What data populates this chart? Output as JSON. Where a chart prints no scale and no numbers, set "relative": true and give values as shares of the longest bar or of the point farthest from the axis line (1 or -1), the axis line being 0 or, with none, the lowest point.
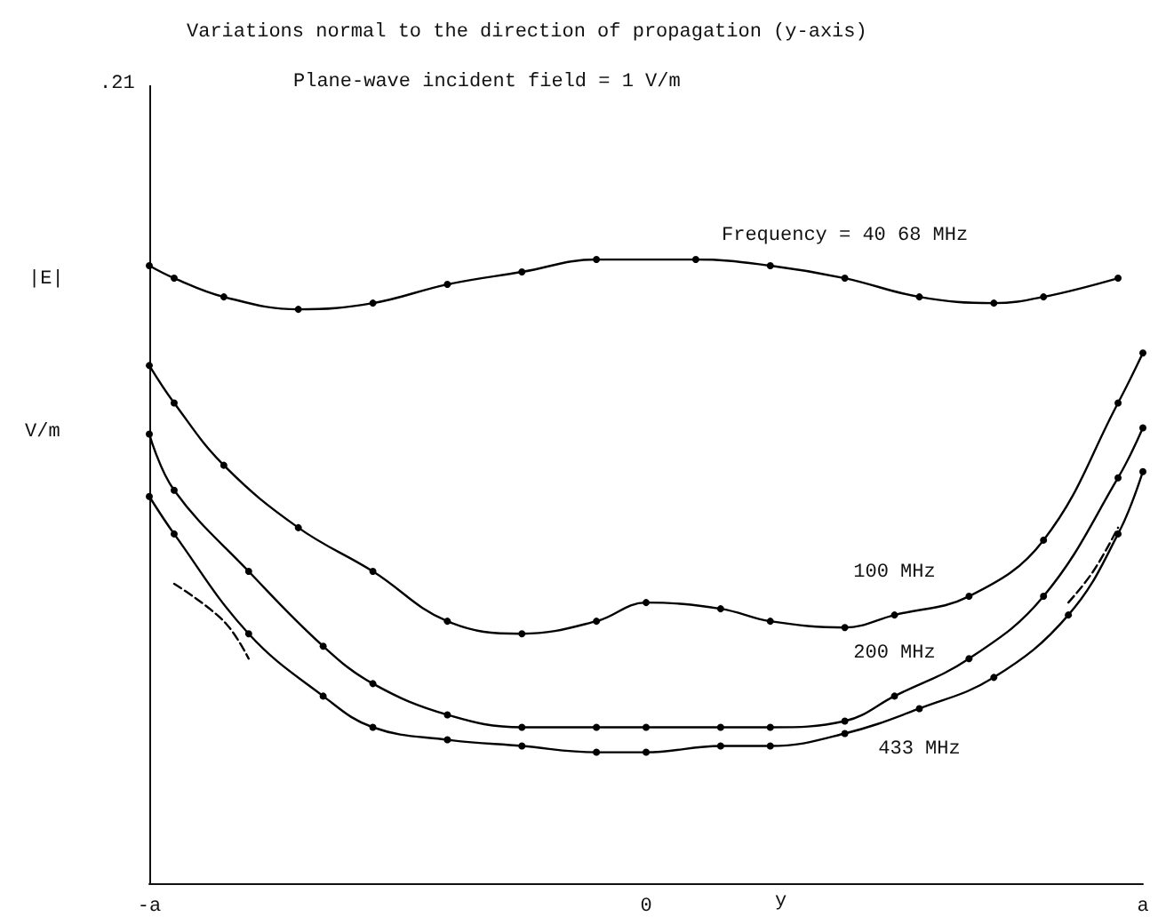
{
  "chart_data": {
    "type": "line",
    "title": "Variations normal to the direction of propagation (y-axis)",
    "subtitle": "Plane-wave incident field = 1 V/m",
    "xlabel": "y",
    "ylabel": "|E|",
    "annotations": [
      ".21",
      "V/m"
    ],
    "relative": true,
    "grid": false,
    "marker": "circle",
    "line_style": "solid",
    "categories": [
      "-a",
      null,
      null,
      null,
      null,
      null,
      null,
      null,
      null,
      null,
      null,
      null,
      null,
      null,
      null,
      null,
      null,
      null,
      null,
      null,
      "0",
      null,
      null,
      null,
      null,
      null,
      null,
      null,
      null,
      null,
      null,
      null,
      null,
      null,
      null,
      null,
      null,
      null,
      null,
      null,
      "a"
    ],
    "series": [
      {
        "name": "Frequency = 40 68 MHz",
        "color": "#000000",
        "values": [
          0.99,
          0.97,
          null,
          0.94,
          null,
          null,
          0.92,
          null,
          null,
          0.93,
          null,
          null,
          0.96,
          null,
          null,
          0.98,
          null,
          null,
          1.0,
          null,
          null,
          null,
          1.0,
          null,
          null,
          0.99,
          null,
          null,
          0.97,
          null,
          null,
          0.94,
          null,
          null,
          0.93,
          null,
          0.94,
          null,
          null,
          0.97,
          null
        ]
      },
      {
        "name": "100 MHz",
        "color": "#000000",
        "values": [
          0.83,
          0.77,
          null,
          0.67,
          null,
          null,
          0.57,
          null,
          null,
          0.5,
          null,
          null,
          0.42,
          null,
          null,
          0.4,
          null,
          null,
          0.42,
          null,
          0.45,
          null,
          null,
          0.44,
          null,
          0.42,
          null,
          null,
          0.41,
          null,
          0.43,
          null,
          null,
          0.46,
          null,
          null,
          0.55,
          null,
          null,
          0.77,
          0.85
        ]
      },
      {
        "name": "200 MHz",
        "color": "#000000",
        "values": [
          0.72,
          0.63,
          null,
          null,
          0.5,
          null,
          null,
          0.38,
          null,
          0.32,
          null,
          null,
          0.27,
          null,
          null,
          0.25,
          null,
          null,
          0.25,
          null,
          0.25,
          null,
          null,
          0.25,
          null,
          0.25,
          null,
          null,
          0.26,
          null,
          0.3,
          null,
          null,
          0.36,
          null,
          null,
          0.46,
          null,
          null,
          0.65,
          0.73
        ]
      },
      {
        "name": "433 MHz",
        "color": "#000000",
        "values": [
          0.62,
          0.56,
          null,
          null,
          0.4,
          null,
          null,
          0.3,
          null,
          0.25,
          null,
          null,
          0.23,
          null,
          null,
          0.22,
          null,
          null,
          0.21,
          null,
          0.21,
          null,
          null,
          0.22,
          null,
          0.22,
          null,
          null,
          0.24,
          null,
          null,
          0.28,
          null,
          null,
          0.33,
          null,
          null,
          0.43,
          null,
          0.56,
          0.66
        ]
      },
      {
        "color": "#000000",
        "line_style": "dashed",
        "marker": "none",
        "values": [
          null,
          0.48,
          null,
          0.42,
          0.36,
          null,
          null,
          null,
          null,
          null,
          null,
          null,
          null,
          null,
          null,
          null,
          null,
          null,
          null,
          null,
          null,
          null,
          null,
          null,
          null,
          null,
          null,
          null,
          null,
          null,
          null,
          null,
          null,
          null,
          null,
          null,
          null,
          null,
          null,
          null,
          null
        ]
      },
      {
        "color": "#000000",
        "line_style": "dashed",
        "marker": "none",
        "values": [
          null,
          null,
          null,
          null,
          null,
          null,
          null,
          null,
          null,
          null,
          null,
          null,
          null,
          null,
          null,
          null,
          null,
          null,
          null,
          null,
          null,
          null,
          null,
          null,
          null,
          null,
          null,
          null,
          null,
          null,
          null,
          null,
          null,
          null,
          null,
          null,
          null,
          0.45,
          0.5,
          0.57,
          null
        ]
      }
    ]
  }
}
